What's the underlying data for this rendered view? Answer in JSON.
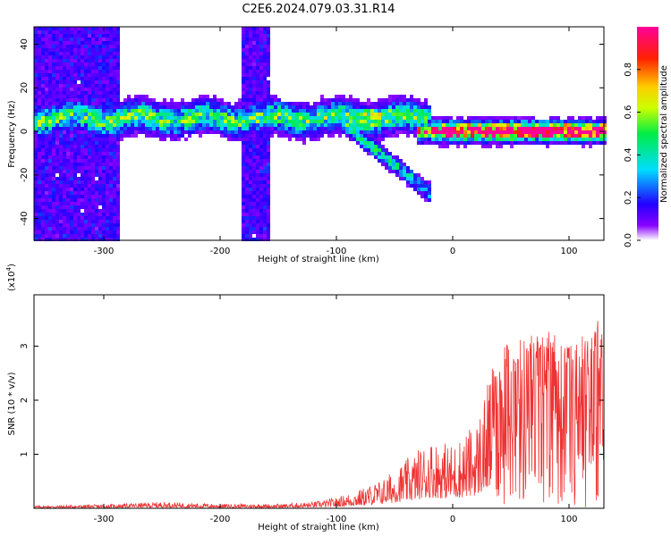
{
  "title": "C2E6.2024.079.03.31.R14",
  "colors": {
    "snr_line": "#ee3333",
    "spectro_low": "#7700ee",
    "spectro_mid": "#22dd99",
    "spectro_high": "#ee1133"
  },
  "chart_data": [
    {
      "type": "heatmap",
      "title": "C2E6.2024.079.03.31.R14",
      "xlabel": "Height of straight line (km)",
      "ylabel": "Frequency (Hz)",
      "xlim": [
        -360,
        130
      ],
      "ylim": [
        -50,
        48
      ],
      "xticks": [
        -300,
        -200,
        -100,
        0,
        100
      ],
      "yticks": [
        -40,
        -20,
        0,
        20,
        40
      ],
      "grid": false,
      "colorbar": {
        "label": "Normalized spectral amplitude",
        "range": [
          0.0,
          1.0
        ],
        "ticks": [
          0.0,
          0.2,
          0.4,
          0.6,
          0.8
        ],
        "colormap": "rainbow (white/violet at 0 → blue → cyan → green → yellow → orange → red → magenta at 1)",
        "position": "right"
      },
      "features": [
        {
          "name": "main band",
          "x_range": [
            -360,
            130
          ],
          "freq_center": 6,
          "freq_halfwidth": 6,
          "amplitude": 0.4
        },
        {
          "name": "descending streak",
          "x_range": [
            -100,
            -20
          ],
          "freq_from": 8,
          "freq_to": -28,
          "amplitude": 0.5
        },
        {
          "name": "strong band",
          "x_range": [
            -20,
            130
          ],
          "freq_center": 0,
          "freq_halfwidth": 3,
          "amplitude": 0.9
        },
        {
          "name": "broadband noise",
          "x_range": [
            -360,
            -290
          ],
          "freq_range": [
            -50,
            48
          ],
          "amplitude": 0.15
        },
        {
          "name": "broadband noise",
          "x_range": [
            -180,
            -160
          ],
          "freq_range": [
            -50,
            48
          ],
          "amplitude": 0.15
        }
      ]
    },
    {
      "type": "line",
      "xlabel": "Height of straight line (km)",
      "ylabel": "SNR (10 * v/v)",
      "ylabel_scale": "(x10",
      "ylabel_scale_exp": "4",
      "ylabel_scale_close": ")",
      "xlim": [
        -360,
        130
      ],
      "ylim": [
        0,
        3.95
      ],
      "xticks": [
        -300,
        -200,
        -100,
        0,
        100
      ],
      "yticks": [
        1,
        2,
        3
      ],
      "grid": false,
      "series": [
        {
          "color": "#ee3333",
          "envelope_x": [
            -360,
            -300,
            -250,
            -200,
            -150,
            -120,
            -100,
            -80,
            -60,
            -40,
            -20,
            0,
            20,
            40,
            60,
            80,
            100,
            130
          ],
          "envelope_y": [
            0.05,
            0.07,
            0.12,
            0.08,
            0.08,
            0.12,
            0.2,
            0.35,
            0.55,
            0.9,
            1.3,
            1.2,
            1.6,
            3.0,
            3.2,
            3.4,
            3.0,
            3.6
          ]
        }
      ]
    }
  ]
}
